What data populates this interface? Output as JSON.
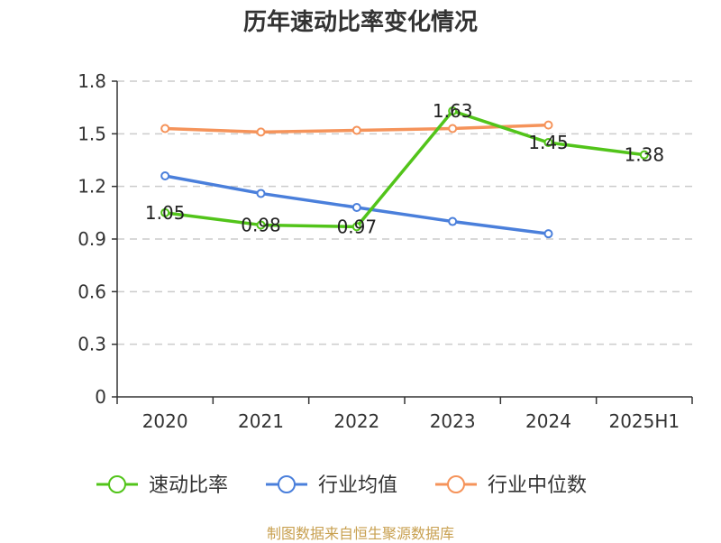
{
  "chart_data": {
    "type": "line",
    "title": "历年速动比率变化情况",
    "categories": [
      "2020",
      "2021",
      "2022",
      "2023",
      "2024",
      "2025H1"
    ],
    "ylim": [
      0,
      1.8
    ],
    "yticks": [
      "0",
      "0.3",
      "0.6",
      "0.9",
      "1.2",
      "1.5",
      "1.8"
    ],
    "grid": true,
    "legend_position": "bottom",
    "series": [
      {
        "name": "速动比率",
        "color": "#52c41a",
        "values": [
          1.05,
          0.98,
          0.97,
          1.63,
          1.45,
          1.38
        ],
        "labels": [
          "1.05",
          "0.98",
          "0.97",
          "1.63",
          "1.45",
          "1.38"
        ]
      },
      {
        "name": "行业均值",
        "color": "#4a7fdb",
        "values": [
          1.26,
          1.16,
          1.08,
          1.0,
          0.93,
          null
        ]
      },
      {
        "name": "行业中位数",
        "color": "#f5935a",
        "values": [
          1.53,
          1.51,
          1.52,
          1.53,
          1.55,
          null
        ]
      }
    ]
  },
  "footer": "制图数据来自恒生聚源数据库"
}
